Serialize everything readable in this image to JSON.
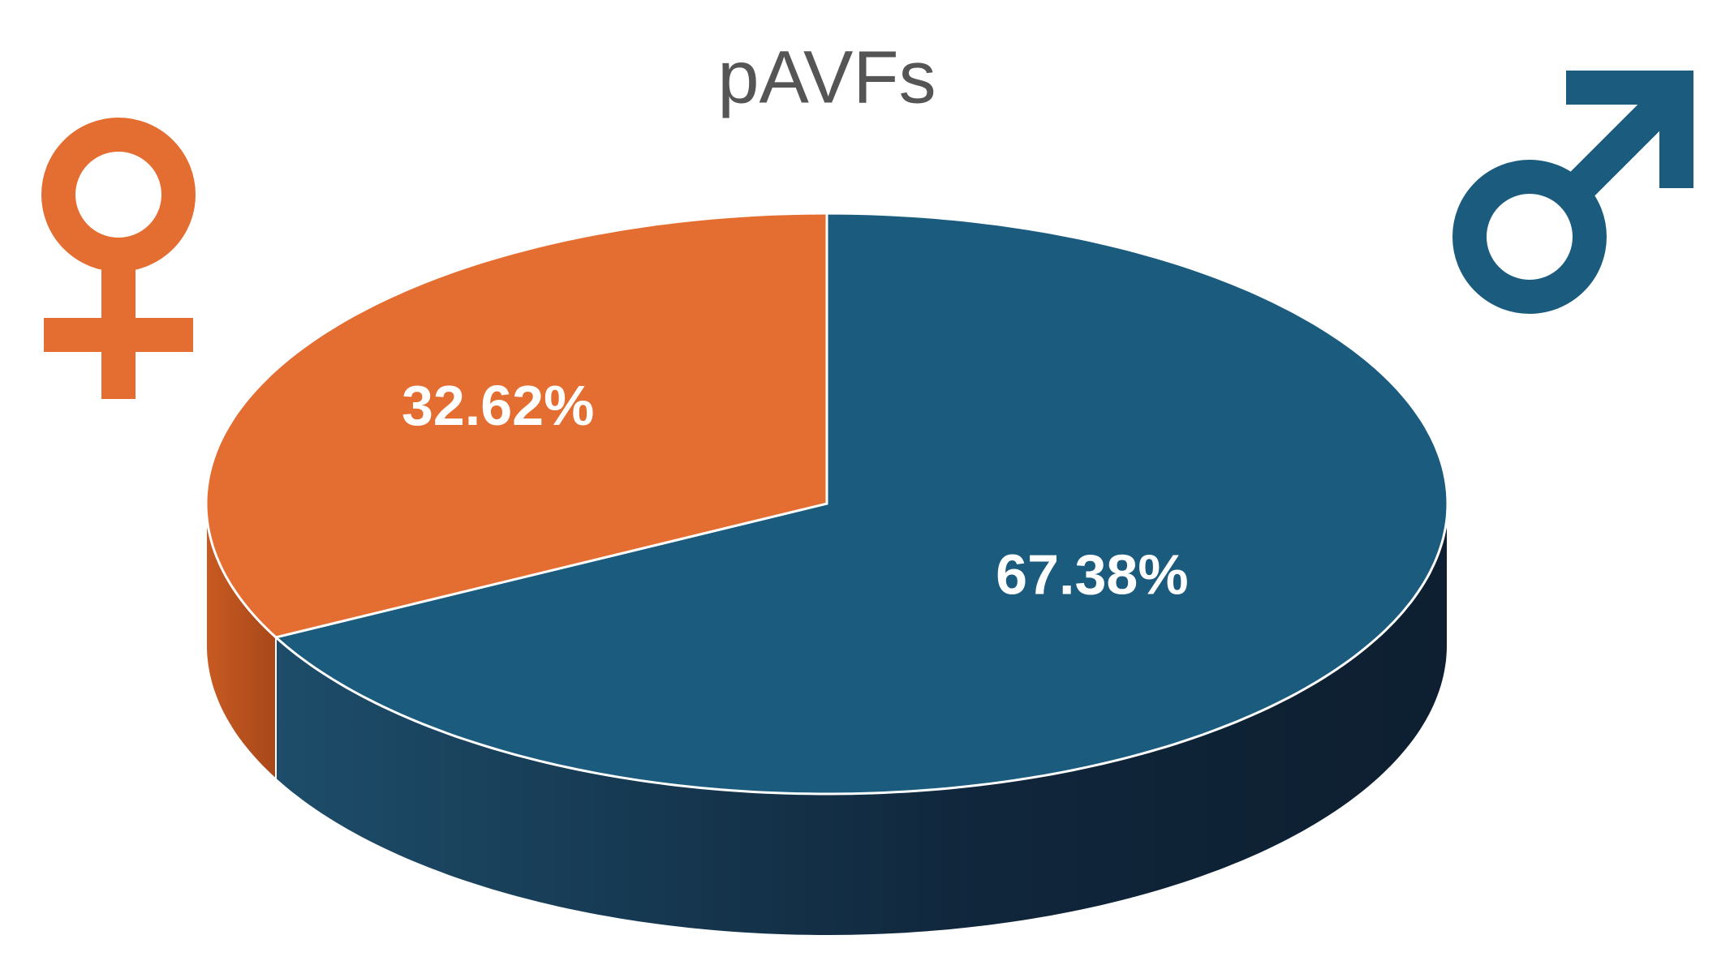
{
  "chart_data": {
    "type": "pie3d",
    "title": "pAVFs",
    "values": [
      32.62,
      67.38
    ],
    "value_labels": [
      "32.62%",
      "67.38%"
    ],
    "colors": [
      "#e46e31",
      "#1a5b7e"
    ]
  }
}
